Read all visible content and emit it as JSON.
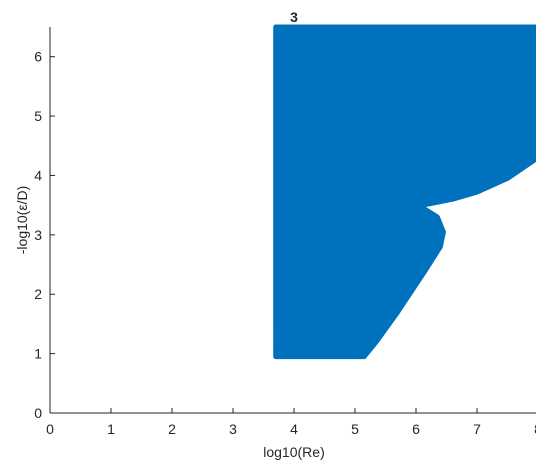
{
  "chart_data": {
    "type": "scatter",
    "title": "3",
    "xlabel": "log10(Re)",
    "ylabel": "-log10(ε/D)",
    "xlim": [
      0,
      8
    ],
    "ylim": [
      0,
      6.5
    ],
    "xticks": [
      0,
      1,
      2,
      3,
      4,
      5,
      6,
      7,
      8
    ],
    "yticks": [
      0,
      1,
      2,
      3,
      4,
      5,
      6
    ],
    "grid": false,
    "legend": "none",
    "marker_color": "#0072BD",
    "region_outline": [
      {
        "x": 3.7,
        "y": 6.5
      },
      {
        "x": 8.0,
        "y": 6.5
      },
      {
        "x": 8.0,
        "y": 4.3
      },
      {
        "x": 7.5,
        "y": 3.95
      },
      {
        "x": 7.0,
        "y": 3.72
      },
      {
        "x": 6.6,
        "y": 3.6
      },
      {
        "x": 6.2,
        "y": 3.52
      },
      {
        "x": 6.05,
        "y": 3.5
      },
      {
        "x": 6.15,
        "y": 3.43
      },
      {
        "x": 6.35,
        "y": 3.3
      },
      {
        "x": 6.45,
        "y": 3.05
      },
      {
        "x": 6.4,
        "y": 2.8
      },
      {
        "x": 6.15,
        "y": 2.4
      },
      {
        "x": 5.7,
        "y": 1.7
      },
      {
        "x": 5.35,
        "y": 1.2
      },
      {
        "x": 5.15,
        "y": 0.95
      },
      {
        "x": 3.7,
        "y": 0.95
      }
    ]
  }
}
